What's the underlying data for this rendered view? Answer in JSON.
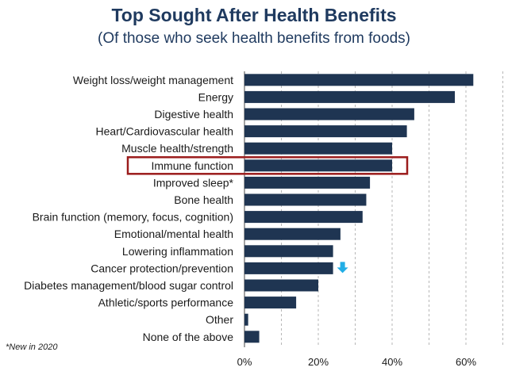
{
  "header": {
    "title": "Top Sought After Health Benefits",
    "subtitle": "(Of those who seek health benefits from foods)"
  },
  "footnote": "*New in 2020",
  "colors": {
    "bar": "#1f3552",
    "highlight_box": "#9b1c1c",
    "down_arrow": "#22aee6",
    "grid": "#b7b7b7",
    "title": "#1f3a5f"
  },
  "chart_data": {
    "type": "bar",
    "orientation": "horizontal",
    "categories": [
      "Weight loss/weight management",
      "Energy",
      "Digestive health",
      "Heart/Cardiovascular health",
      "Muscle health/strength",
      "Immune function",
      "Improved sleep*",
      "Bone health",
      "Brain function (memory, focus, cognition)",
      "Emotional/mental health",
      "Lowering inflammation",
      "Cancer protection/prevention",
      "Diabetes management/blood sugar control",
      "Athletic/sports performance",
      "Other",
      "None of the above"
    ],
    "values": [
      62,
      57,
      46,
      44,
      40,
      40,
      34,
      33,
      32,
      26,
      24,
      24,
      20,
      14,
      1,
      4
    ],
    "xlim": [
      0,
      70
    ],
    "xticks": [
      0,
      20,
      40,
      60
    ],
    "xtick_labels": [
      "0%",
      "20%",
      "40%",
      "60%"
    ],
    "grid": "vertical dashed at 10% steps",
    "highlighted_category": "Immune function",
    "trend_down_marker": "Cancer protection/prevention",
    "icons": [
      "down-arrow-icon"
    ]
  }
}
